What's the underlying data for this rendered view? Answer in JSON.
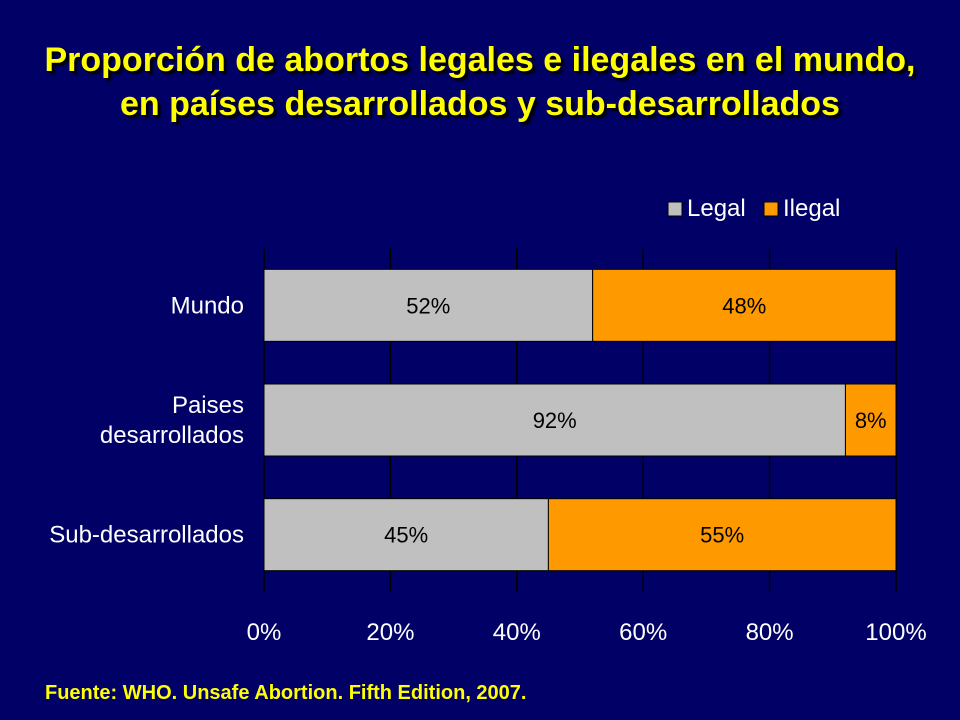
{
  "slide": {
    "title": "Proporción de abortos legales e ilegales en el mundo, en países desarrollados y sub-desarrollados",
    "source": "Fuente: WHO. Unsafe Abortion. Fifth Edition, 2007."
  },
  "colors": {
    "background": "#000066",
    "title": "#FFFF00",
    "legal": "#C0C0C0",
    "ilegal": "#FF9900",
    "axis_text": "#FFFFFF",
    "label_text": "#000000"
  },
  "chart_data": {
    "type": "bar",
    "orientation": "horizontal",
    "stacked": true,
    "categories": [
      "Mundo",
      "Paises desarrollados",
      "Sub-desarrollados"
    ],
    "series": [
      {
        "name": "Legal",
        "values": [
          52,
          92,
          45
        ],
        "labels": [
          "52%",
          "92%",
          "45%"
        ]
      },
      {
        "name": "Ilegal",
        "values": [
          48,
          8,
          55
        ],
        "labels": [
          "48%",
          "8%",
          "55%"
        ]
      }
    ],
    "xlim": [
      0,
      100
    ],
    "xticks": [
      "0%",
      "20%",
      "40%",
      "60%",
      "80%",
      "100%"
    ],
    "grid": true,
    "legend_position": "top-right"
  }
}
